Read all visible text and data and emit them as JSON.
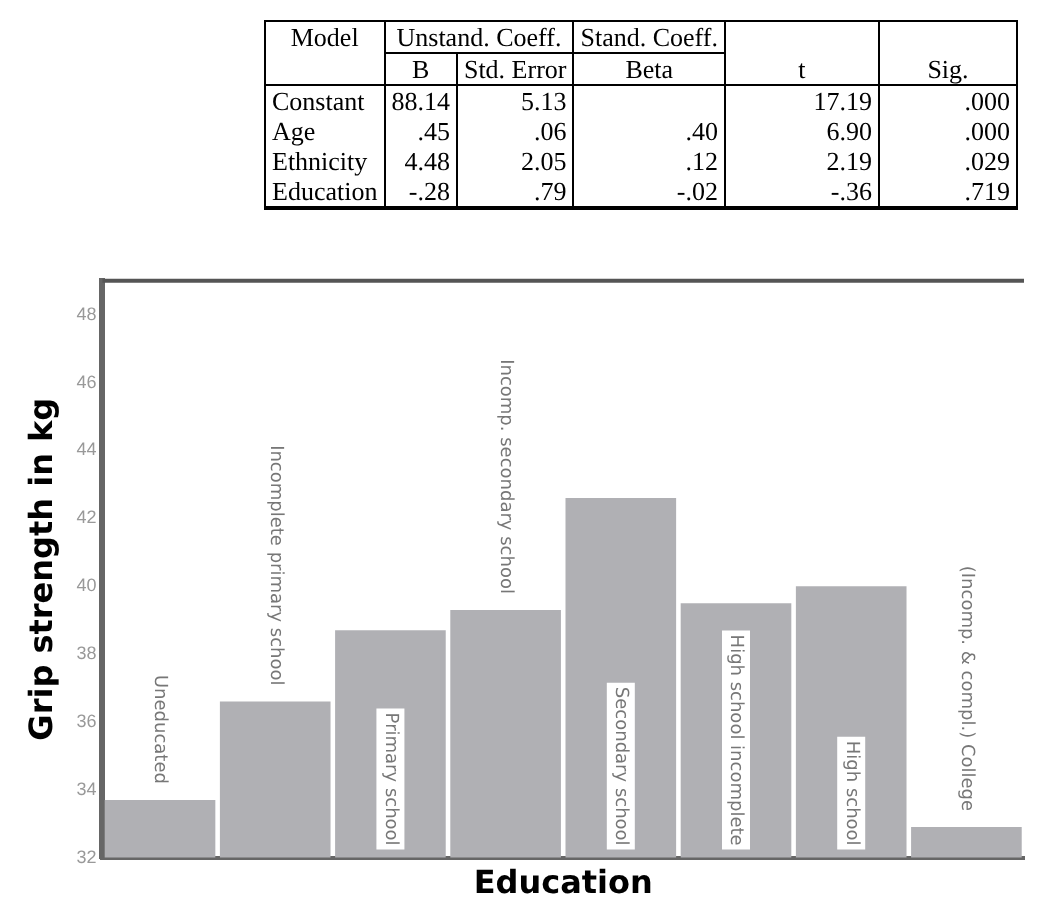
{
  "chart_data": [
    {
      "type": "heatmap",
      "annotations": [
        "Model",
        "Unstand. Coeff.",
        "Stand. Coeff."
      ],
      "categories": [
        "B",
        "Std. Error",
        "Beta",
        "t",
        "Sig."
      ],
      "y_categories": [
        "Constant",
        "Age",
        "Ethnicity",
        "Education"
      ],
      "cells": [
        [
          88.14,
          5.13,
          null,
          17.19,
          0
        ],
        [
          0.45,
          0.06,
          0.4,
          6.9,
          0
        ],
        [
          4.48,
          2.05,
          0.12,
          2.19,
          0.029
        ],
        [
          -0.28,
          0.79,
          -0.02,
          -0.36,
          0.719
        ]
      ],
      "cell_labels": [
        [
          "88.14",
          "5.13",
          null,
          "17.19",
          ".000"
        ],
        [
          ".45",
          ".06",
          ".40",
          "6.90",
          ".000"
        ],
        [
          "4.48",
          "2.05",
          ".12",
          "2.19",
          ".029"
        ],
        [
          "-.28",
          ".79",
          "-.02",
          "-.36",
          ".719"
        ]
      ]
    },
    {
      "type": "bar",
      "xlabel": "Education",
      "ylabel": "Grip strength in kg",
      "categories": [
        "Uneducated",
        "Incomplete primary school",
        "Primary school",
        "Incomp. secondary school",
        "Secondary school",
        "High school incomplete",
        "High school",
        "(Incomp. & compl.) College"
      ],
      "values": [
        33.7,
        36.6,
        38.7,
        39.3,
        42.6,
        39.5,
        40.0,
        32.9
      ],
      "color": "#b0b0b4",
      "ylim": [
        32,
        49
      ],
      "yticks": [
        32,
        34,
        36,
        38,
        40,
        42,
        44,
        46,
        48
      ],
      "tick_labels": "y",
      "grid": false,
      "legend": false
    }
  ]
}
